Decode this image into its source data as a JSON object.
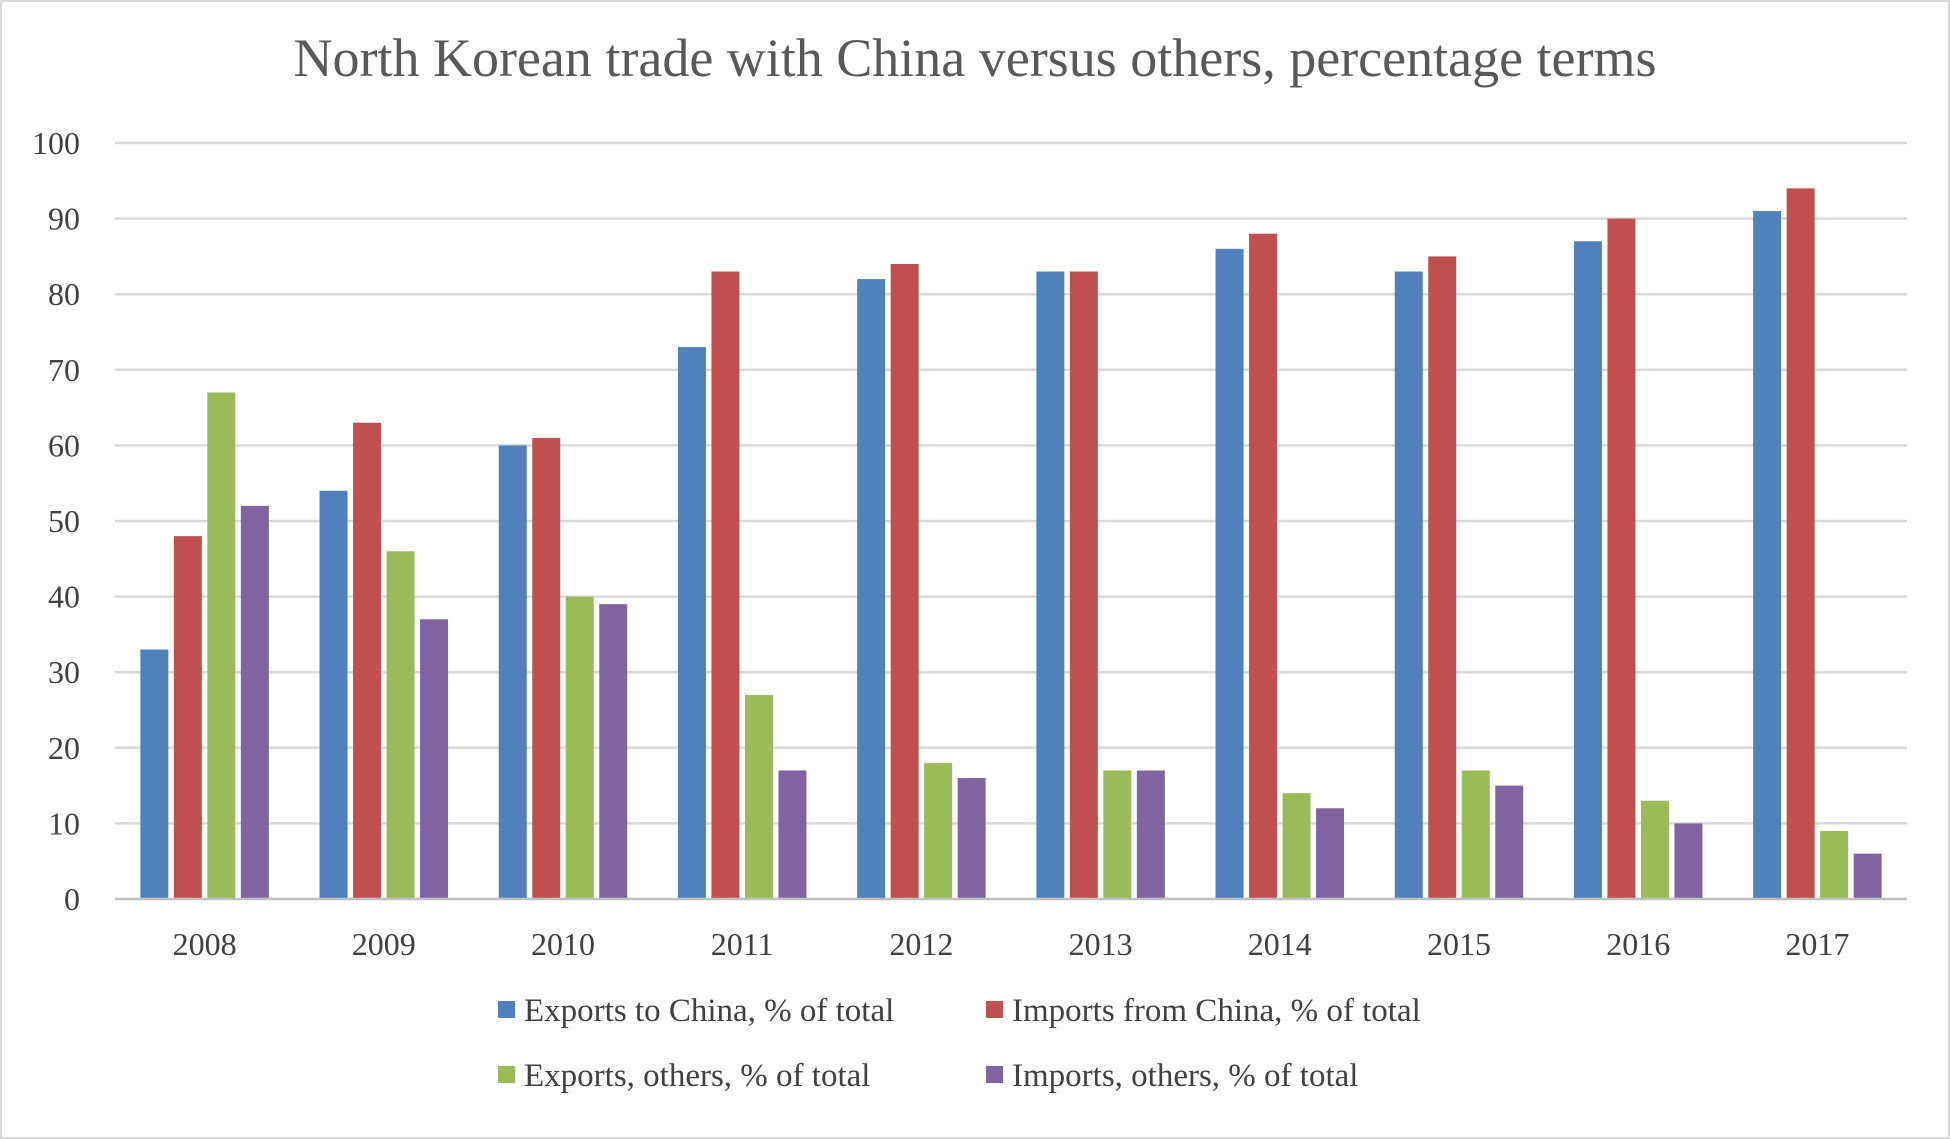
{
  "chart_data": {
    "type": "bar",
    "title": "North Korean trade with China versus others, percentage terms",
    "xlabel": "",
    "ylabel": "",
    "categories": [
      "2008",
      "2009",
      "2010",
      "2011",
      "2012",
      "2013",
      "2014",
      "2015",
      "2016",
      "2017"
    ],
    "ylim": [
      0,
      100
    ],
    "yticks": [
      0,
      10,
      20,
      30,
      40,
      50,
      60,
      70,
      80,
      90,
      100
    ],
    "grid": true,
    "legend_position": "bottom",
    "series": [
      {
        "name": "Exports to China, % of total",
        "color": "#4f81bd",
        "values": [
          33,
          54,
          60,
          73,
          82,
          83,
          86,
          83,
          87,
          91
        ]
      },
      {
        "name": "Imports from China, % of total",
        "color": "#c0504d",
        "values": [
          48,
          63,
          61,
          83,
          84,
          83,
          88,
          85,
          90,
          94
        ]
      },
      {
        "name": "Exports, others, % of total",
        "color": "#9bbb59",
        "values": [
          67,
          46,
          40,
          27,
          18,
          17,
          14,
          17,
          13,
          9
        ]
      },
      {
        "name": "Imports, others, % of total",
        "color": "#8064a2",
        "values": [
          52,
          37,
          39,
          17,
          16,
          17,
          12,
          15,
          10,
          6
        ]
      }
    ]
  }
}
